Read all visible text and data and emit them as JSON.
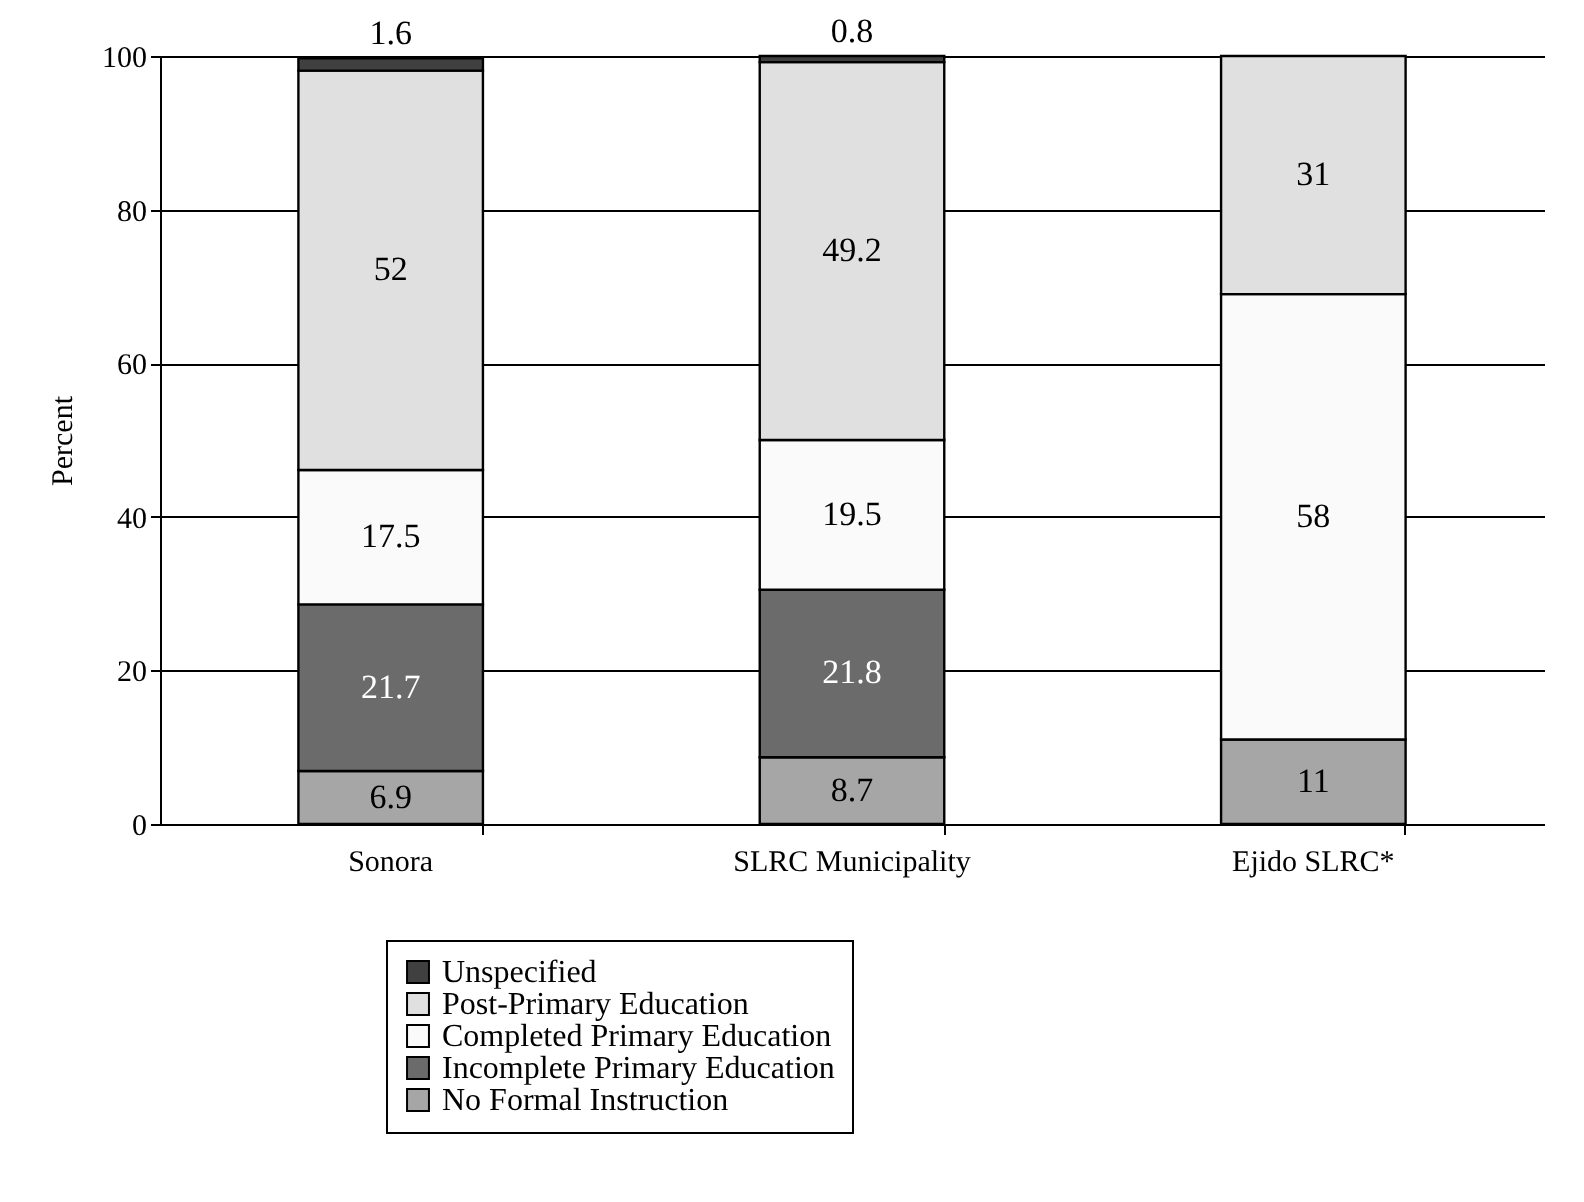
{
  "chart_data": {
    "type": "bar",
    "stacked": true,
    "ylabel": "Percent",
    "categories": [
      "Sonora",
      "SLRC Municipality",
      "Ejido SLRC*"
    ],
    "series": [
      {
        "name": "No Formal Instruction",
        "color": "#a6a6a6",
        "values": [
          6.9,
          8.7,
          11
        ]
      },
      {
        "name": "Incomplete Primary Education",
        "color": "#6b6b6b",
        "values": [
          21.7,
          21.8,
          null
        ]
      },
      {
        "name": "Completed Primary Education",
        "color": "#fafafa",
        "values": [
          17.5,
          19.5,
          58
        ]
      },
      {
        "name": "Post-Primary Education",
        "color": "#e0e0e0",
        "values": [
          52,
          49.2,
          31
        ]
      },
      {
        "name": "Unspecified",
        "color": "#404040",
        "values": [
          1.6,
          0.8,
          null
        ]
      }
    ],
    "ylim": [
      0,
      100
    ],
    "yticks": [
      0,
      20,
      40,
      60,
      80,
      100
    ],
    "grid": "y",
    "legend": "bottom",
    "data_labels": true
  }
}
